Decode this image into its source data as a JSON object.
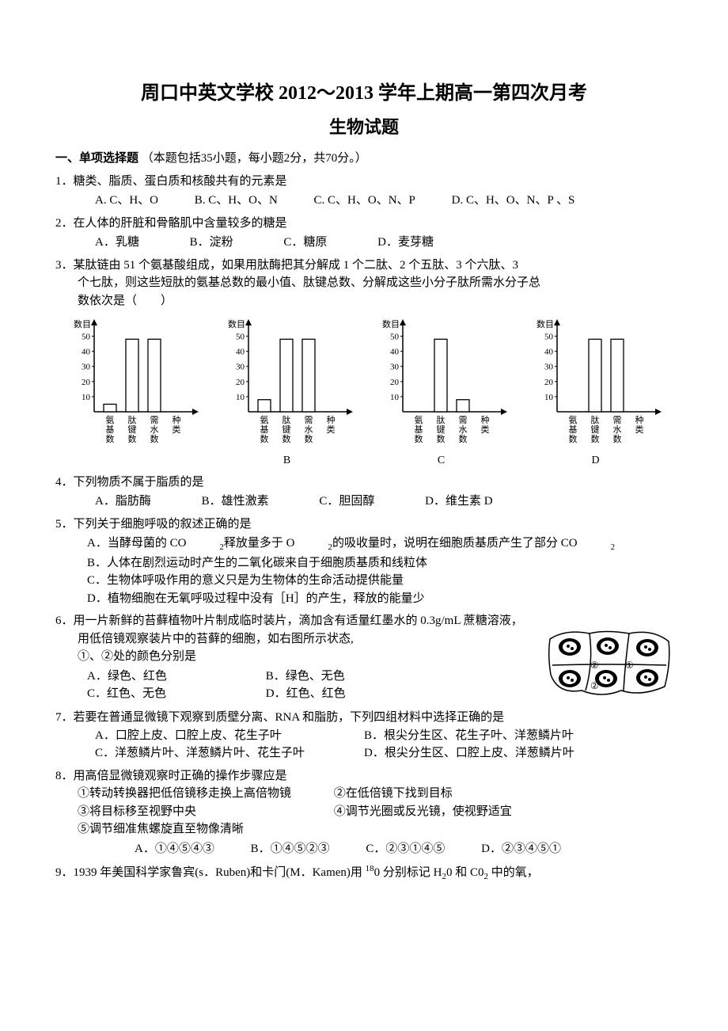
{
  "header": {
    "title": "周口中英文学校 2012～2013 学年上期高一第四次月考",
    "subtitle": "生物试题"
  },
  "section1": {
    "heading": "一、单项选择题",
    "note": "（本题包括35小题，每小题2分，共70分。）"
  },
  "q1": {
    "stem": "1．糖类、脂质、蛋白质和核酸共有的元素是",
    "A": "A. C、H、O",
    "B": "B. C、H、O、N",
    "C": "C. C、H、O、N、P",
    "D": "D. C、H、O、N、P 、S"
  },
  "q2": {
    "stem": "2．在人体的肝脏和骨骼肌中含量较多的糖是",
    "A": "A．乳糖",
    "B": "B．淀粉",
    "C": "C．糖原",
    "D": "D．麦芽糖"
  },
  "q3": {
    "stem1": "3．某肽链由 51 个氨基酸组成，如果用肽酶把其分解成 1 个二肽、2 个五肽、3 个六肽、3",
    "stem2": "个七肽，则这些短肽的氨基总数的最小值、肽键总数、分解成这些小分子肽所需水分子总",
    "stem3": "数依次是（　　）",
    "yaxis_label": "数目",
    "y_ticks": [
      50,
      40,
      30,
      20,
      10
    ],
    "x_labels": [
      "氨基数",
      "肽键数",
      "需水数",
      "种类"
    ],
    "chartA": {
      "bars": [
        5,
        48,
        48,
        0
      ],
      "label": ""
    },
    "chartB": {
      "bars": [
        8,
        48,
        48,
        0
      ],
      "label": "B"
    },
    "chartC": {
      "bars": [
        0,
        48,
        8,
        0
      ],
      "label": "C"
    },
    "chartD": {
      "bars": [
        0,
        48,
        48,
        0
      ],
      "label": "D"
    },
    "chart_style": {
      "bar_color": "#ffffff",
      "bar_stroke": "#000000",
      "axis_color": "#000000",
      "font_size": 11,
      "ymax": 55
    }
  },
  "q4": {
    "stem": "4．下列物质不属于脂质的是",
    "A": "A．脂肪酶",
    "B": "B．雄性激素",
    "C": "C．胆固醇",
    "D": "D．维生素 D"
  },
  "q5": {
    "stem": "5．下列关于细胞呼吸的叙述正确的是",
    "A_pre": "A．当酵母菌的 CO",
    "A_mid": " 释放量多于 O",
    "A_post": " 的吸收量时，说明在细胞质基质产生了部分 CO",
    "B": "B．人体在剧烈运动时产生的二氧化碳来自于细胞质基质和线粒体",
    "C": "C．生物体呼吸作用的意义只是为生物体的生命活动提供能量",
    "D": "D．植物细胞在无氧呼吸过程中没有［H］的产生，释放的能量少"
  },
  "q6": {
    "stem1": "6．用一片新鲜的苔藓植物叶片制成临时装片，滴加含有适量红墨水的 0.3g/mL 蔗糖溶液，",
    "stem2": "用低倍镜观察装片中的苔藓的细胞，如右图所示状态,",
    "stem3": "①、②处的颜色分别是",
    "A": "A．绿色、红色",
    "B": "B．绿色、无色",
    "C": "C．红色、无色",
    "D": "D．红色、红色",
    "img_labels": {
      "one": "①",
      "two": "②"
    }
  },
  "q7": {
    "stem": "7．若要在普通显微镜下观察到质壁分离、RNA 和脂肪，下列四组材料中选择正确的是",
    "A": "A．口腔上皮、口腔上皮、花生子叶",
    "B": "B．根尖分生区、花生子叶、洋葱鳞片叶",
    "C": "C．洋葱鳞片叶、洋葱鳞片叶、花生子叶",
    "D": "D．根尖分生区、口腔上皮、洋葱鳞片叶"
  },
  "q8": {
    "stem": "8．用高倍显微镜观察时正确的操作步骤应是",
    "s1": "①转动转换器把低倍镜移走换上高倍物镜",
    "s2": "②在低倍镜下找到目标",
    "s3": "③将目标移至视野中央",
    "s4": "④调节光圈或反光镜，使视野适宜",
    "s5": "⑤调节细准焦螺旋直至物像清晰",
    "A": "A．①④⑤④③",
    "B": "B．①④⑤②③",
    "C": "C．②③①④⑤",
    "D": "D．②③④⑤①"
  },
  "q9": {
    "stem_pre": "9．1939 年美国科学家鲁宾(s．Ruben)和卡门(M．Kamen)用 ",
    "stem_mid": "0 分别标记 H",
    "stem_mid2": "0 和 C0",
    "stem_post": " 中的氧，"
  }
}
